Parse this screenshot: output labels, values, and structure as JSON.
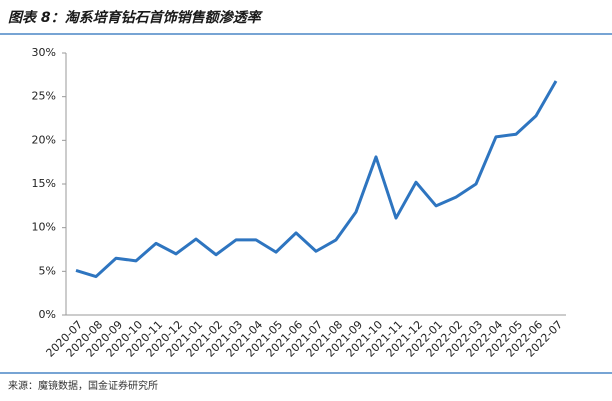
{
  "chart_data": {
    "type": "line",
    "title": "图表 8：淘系培育钻石首饰销售额渗透率",
    "source": "来源：魔镜数据，国金证券研究所",
    "categories": [
      "2020-07",
      "2020-08",
      "2020-09",
      "2020-10",
      "2020-11",
      "2020-12",
      "2021-01",
      "2021-02",
      "2021-03",
      "2021-04",
      "2021-05",
      "2021-06",
      "2021-07",
      "2021-08",
      "2021-09",
      "2021-10",
      "2021-11",
      "2021-12",
      "2022-01",
      "2022-02",
      "2022-03",
      "2022-04",
      "2022-05",
      "2022-06",
      "2022-07"
    ],
    "series": [
      {
        "color": "#2e75c0",
        "values": [
          5.1,
          4.4,
          6.5,
          6.2,
          8.2,
          7.0,
          8.7,
          6.9,
          8.6,
          8.6,
          7.2,
          9.4,
          7.3,
          8.6,
          11.8,
          18.1,
          11.1,
          15.2,
          12.5,
          13.5,
          15.0,
          20.4,
          20.7,
          22.8,
          26.8
        ]
      }
    ],
    "ylim": [
      0,
      30
    ],
    "yticks": [
      {
        "value": 0,
        "label": "0%"
      },
      {
        "value": 5,
        "label": "5%"
      },
      {
        "value": 10,
        "label": "10%"
      },
      {
        "value": 15,
        "label": "15%"
      },
      {
        "value": 20,
        "label": "20%"
      },
      {
        "value": 25,
        "label": "25%"
      },
      {
        "value": 30,
        "label": "30%"
      }
    ],
    "grid": false
  }
}
